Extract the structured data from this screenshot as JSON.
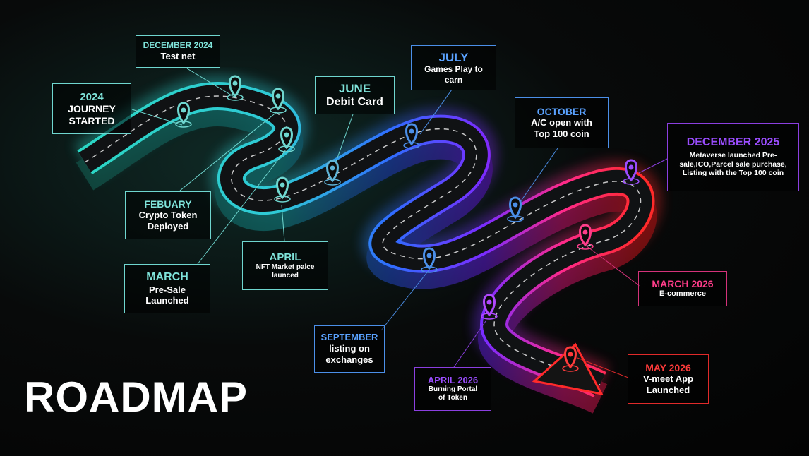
{
  "title": "ROADMAP",
  "milestones": {
    "journey": {
      "title": "2024",
      "text": "JOURNEY STARTED"
    },
    "dec2024": {
      "title": "DECEMBER 2024",
      "text": "Test net"
    },
    "febuary": {
      "title": "FEBUARY",
      "text": "Crypto Token Deployed"
    },
    "march": {
      "title": "MARCH",
      "text": "Pre-Sale Launched"
    },
    "april": {
      "title": "APRIL",
      "text": "NFT Market palce launced"
    },
    "june": {
      "title": "JUNE",
      "text": "Debit Card"
    },
    "july": {
      "title": "JULY",
      "text": "Games Play to earn"
    },
    "september": {
      "title": "SEPTEMBER",
      "text": "listing on exchanges"
    },
    "october": {
      "title": "OCTOBER",
      "text": "A/C open with Top 100 coin"
    },
    "dec2025": {
      "title": "DECEMBER 2025",
      "text": "Metaverse launched Pre-sale,ICO,Parcel sale purchase, Listing with the Top 100 coin"
    },
    "march2026": {
      "title": "MARCH 2026",
      "text": "E-commerce"
    },
    "april2026": {
      "title": "APRIL 2026",
      "text": "Burning Portal of Token"
    },
    "may2026": {
      "title": "MAY 2026",
      "text": "V-meet  App Launched"
    }
  },
  "colors": {
    "teal": "#6fd6cf",
    "blue": "#4b8fe8",
    "purple": "#8b3fe0",
    "pink": "#d4327a",
    "red": "#e02a2a"
  },
  "icons": {
    "pin": "location-pin-icon"
  }
}
